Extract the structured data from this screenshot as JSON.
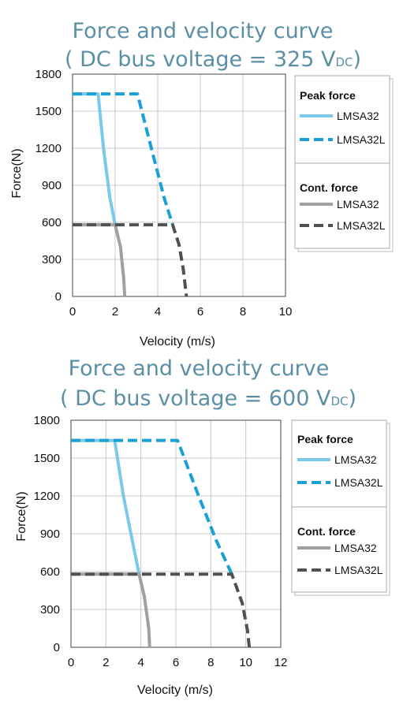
{
  "chart_data": [
    {
      "type": "line",
      "title_main": "Force and velocity curve",
      "title_sub_prefix": "( DC bus voltage = 325 V",
      "title_sub_subscript": "DC",
      "title_sub_suffix": ")",
      "xlabel": "Velocity (m/s)",
      "ylabel": "Force(N)",
      "xlim": [
        0,
        10
      ],
      "ylim": [
        0,
        1800
      ],
      "xticks": [
        0,
        2,
        4,
        6,
        8,
        10
      ],
      "yticks": [
        0,
        300,
        600,
        900,
        1200,
        1500,
        1800
      ],
      "grid": true,
      "legend_position": "right",
      "legend_groups": [
        {
          "heading": "Peak force",
          "series": [
            "LMSA32 peak",
            "LMSA32L peak"
          ]
        },
        {
          "heading": "Cont. force",
          "series": [
            "LMSA32 cont",
            "LMSA32L cont"
          ]
        }
      ],
      "series": [
        {
          "key": "LMSA32 peak",
          "name": "LMSA32",
          "color": "#7ac8ea",
          "dash": "solid",
          "points": [
            [
              0,
              1640
            ],
            [
              1.2,
              1640
            ],
            [
              1.45,
              1200
            ],
            [
              1.75,
              800
            ],
            [
              2.0,
              580
            ]
          ]
        },
        {
          "key": "LMSA32L peak",
          "name": "LMSA32L",
          "color": "#1aa0d8",
          "dash": "dashed",
          "points": [
            [
              0,
              1640
            ],
            [
              3.05,
              1640
            ],
            [
              3.7,
              1200
            ],
            [
              4.3,
              800
            ],
            [
              4.7,
              580
            ]
          ]
        },
        {
          "key": "LMSA32 cont",
          "name": "LMSA32",
          "color": "#9ea0a2",
          "dash": "solid",
          "points": [
            [
              0,
              580
            ],
            [
              2.0,
              580
            ],
            [
              2.25,
              400
            ],
            [
              2.4,
              150
            ],
            [
              2.45,
              0
            ]
          ]
        },
        {
          "key": "LMSA32L cont",
          "name": "LMSA32L",
          "color": "#4f5153",
          "dash": "dashed",
          "points": [
            [
              0,
              580
            ],
            [
              4.7,
              580
            ],
            [
              5.0,
              420
            ],
            [
              5.2,
              220
            ],
            [
              5.35,
              0
            ]
          ]
        }
      ]
    },
    {
      "type": "line",
      "title_main": "Force and velocity curve",
      "title_sub_prefix": "( DC bus voltage = 600 V",
      "title_sub_subscript": "DC",
      "title_sub_suffix": ")",
      "xlabel": "Velocity (m/s)",
      "ylabel": "Force(N)",
      "xlim": [
        0,
        12
      ],
      "ylim": [
        0,
        1800
      ],
      "xticks": [
        0,
        2,
        4,
        6,
        8,
        10,
        12
      ],
      "yticks": [
        0,
        300,
        600,
        900,
        1200,
        1500,
        1800
      ],
      "grid": true,
      "legend_position": "right",
      "legend_groups": [
        {
          "heading": "Peak force",
          "series": [
            "LMSA32 peak",
            "LMSA32L peak"
          ]
        },
        {
          "heading": "Cont. force",
          "series": [
            "LMSA32 cont",
            "LMSA32L cont"
          ]
        }
      ],
      "series": [
        {
          "key": "LMSA32 peak",
          "name": "LMSA32",
          "color": "#7ac8ea",
          "dash": "solid",
          "points": [
            [
              0,
              1640
            ],
            [
              2.5,
              1640
            ],
            [
              3.0,
              1200
            ],
            [
              3.5,
              850
            ],
            [
              3.9,
              580
            ]
          ]
        },
        {
          "key": "LMSA32L peak",
          "name": "LMSA32L",
          "color": "#1aa0d8",
          "dash": "dashed",
          "points": [
            [
              0,
              1640
            ],
            [
              6.1,
              1640
            ],
            [
              7.3,
              1200
            ],
            [
              8.3,
              850
            ],
            [
              9.2,
              580
            ]
          ]
        },
        {
          "key": "LMSA32 cont",
          "name": "LMSA32",
          "color": "#9ea0a2",
          "dash": "solid",
          "points": [
            [
              0,
              580
            ],
            [
              3.9,
              580
            ],
            [
              4.2,
              400
            ],
            [
              4.45,
              150
            ],
            [
              4.5,
              0
            ]
          ]
        },
        {
          "key": "LMSA32L cont",
          "name": "LMSA32L",
          "color": "#4f5153",
          "dash": "dashed",
          "points": [
            [
              0,
              580
            ],
            [
              9.2,
              580
            ],
            [
              9.8,
              350
            ],
            [
              10.1,
              130
            ],
            [
              10.2,
              0
            ]
          ]
        }
      ]
    }
  ]
}
